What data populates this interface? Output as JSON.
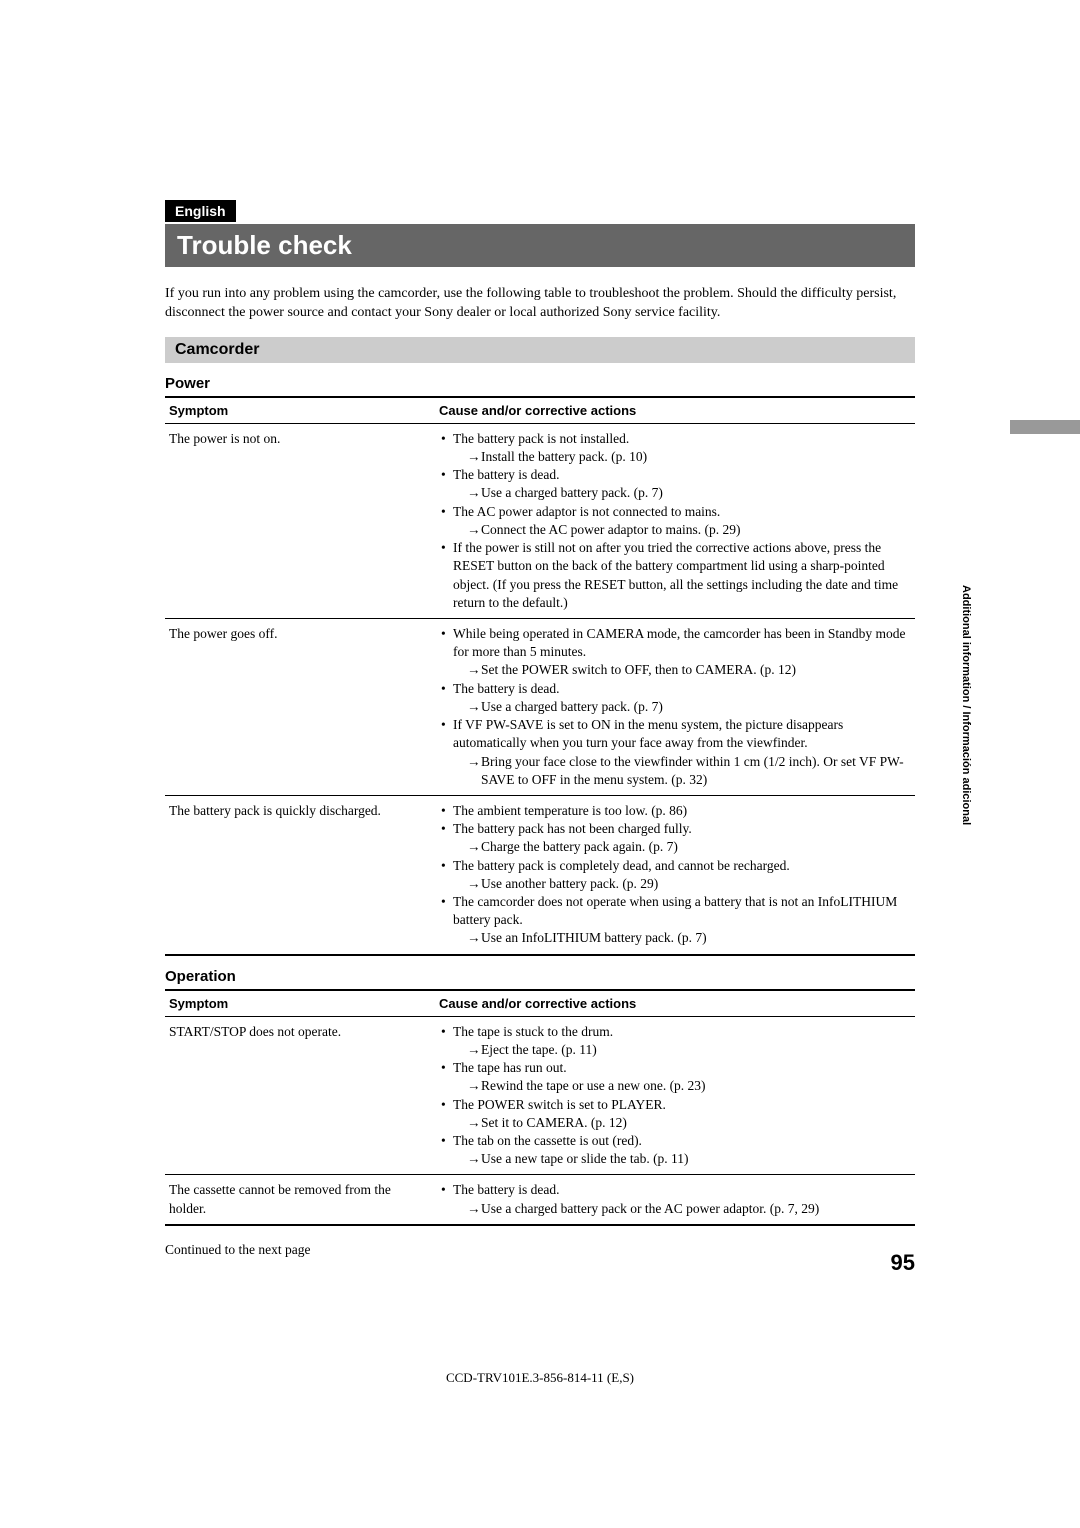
{
  "lang_label": "English",
  "title": "Trouble check",
  "intro": "If you run into any problem using the camcorder, use the following table to troubleshoot the problem. Should the difficulty persist, disconnect the power source and contact your Sony dealer or local authorized Sony service facility.",
  "section_heading": "Camcorder",
  "side_text": "Additional information / Información adicional",
  "tables": [
    {
      "heading": "Power",
      "th_symptom": "Symptom",
      "th_cause": "Cause and/or corrective actions",
      "rows": [
        {
          "symptom": "The power is not on.",
          "items": [
            {
              "cause": "The battery pack is not installed.",
              "action": "Install the battery pack. (p. 10)"
            },
            {
              "cause": "The battery is dead.",
              "action": "Use a charged battery pack. (p. 7)"
            },
            {
              "cause": "The AC power adaptor is not connected to mains.",
              "action": "Connect the AC power adaptor to mains. (p. 29)"
            },
            {
              "cause": "If the power is still not on after you tried the corrective actions above, press the RESET button on the back of the battery compartment lid using a sharp-pointed object.  (If you press the RESET button, all the settings including the date and time return to the default.)"
            }
          ]
        },
        {
          "symptom": "The power goes off.",
          "items": [
            {
              "cause": "While being operated in CAMERA mode, the camcorder has been in Standby mode for more than 5 minutes.",
              "action": "Set the POWER switch to OFF, then to CAMERA. (p. 12)"
            },
            {
              "cause": "The battery is dead.",
              "action": "Use a charged battery pack. (p. 7)"
            },
            {
              "cause": "If VF PW-SAVE is set to ON in the menu system, the picture disappears automatically when you turn your face away from the viewfinder.",
              "action": "Bring your face close to the viewfinder within 1 cm (1/2 inch). Or set VF PW-SAVE to OFF in the menu system. (p. 32)"
            }
          ]
        },
        {
          "symptom": "The battery pack is quickly discharged.",
          "items": [
            {
              "cause": "The ambient temperature is too low. (p. 86)"
            },
            {
              "cause": "The battery pack has not been charged fully.",
              "action": "Charge the battery pack again. (p. 7)"
            },
            {
              "cause": "The battery pack is completely dead, and cannot be recharged.",
              "action": "Use another battery pack. (p. 29)"
            },
            {
              "cause": "The camcorder does not operate when using a battery that is not an InfoLITHIUM battery pack.",
              "action": "Use an InfoLITHIUM battery pack. (p. 7)"
            }
          ]
        }
      ]
    },
    {
      "heading": "Operation",
      "th_symptom": "Symptom",
      "th_cause": "Cause and/or corrective actions",
      "rows": [
        {
          "symptom": "START/STOP does not operate.",
          "items": [
            {
              "cause": "The tape is stuck to the drum.",
              "action": "Eject the tape. (p. 11)"
            },
            {
              "cause": "The tape has run out.",
              "action": "Rewind the tape or use a new one. (p. 23)"
            },
            {
              "cause": "The POWER switch is set to PLAYER.",
              "action": "Set it to CAMERA. (p. 12)"
            },
            {
              "cause": "The tab on the cassette is out (red).",
              "action": "Use a new tape or slide the tab. (p. 11)"
            }
          ]
        },
        {
          "symptom": "The cassette cannot be removed from the holder.",
          "items": [
            {
              "cause": "The battery is dead.",
              "action": "Use a charged battery pack or the AC power adaptor. (p. 7, 29)"
            }
          ]
        }
      ]
    }
  ],
  "continued": "Continued to the next page",
  "page_number": "95",
  "footer": "CCD-TRV101E.3-856-814-11 (E,S)"
}
